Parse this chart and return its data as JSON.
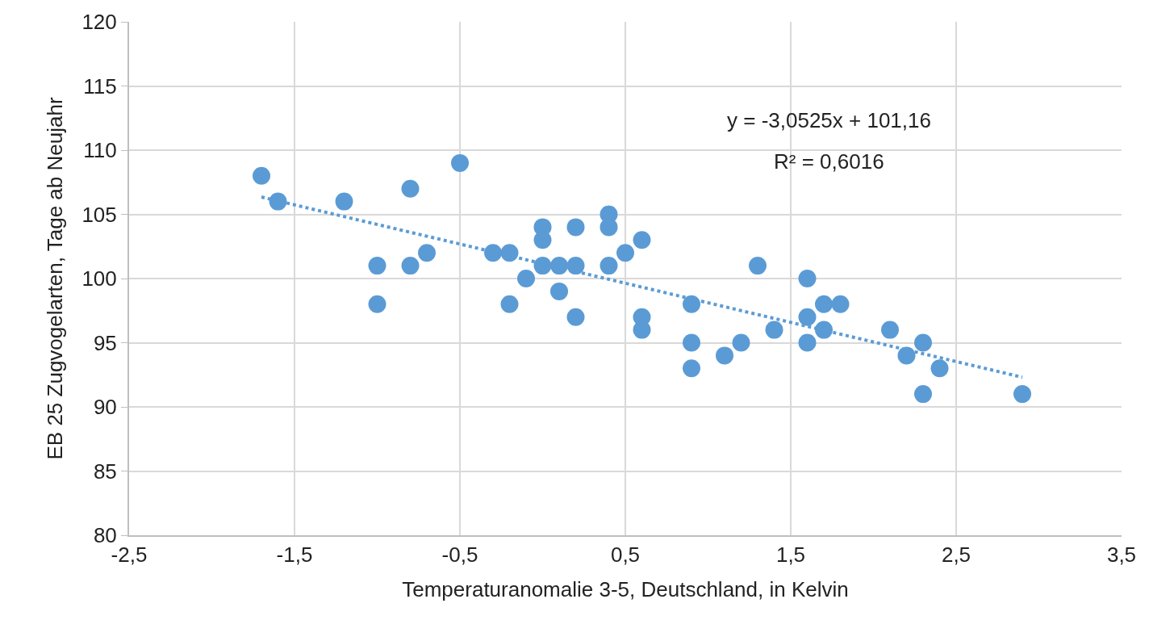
{
  "chart_data": {
    "type": "scatter",
    "xlabel": "Temperaturanomalie 3-5, Deutschland, in Kelvin",
    "ylabel": "EB 25 Zugvogelarten, Tage ab Neujahr",
    "annotations": [
      "y = -3,0525x + 101,16",
      "R² = 0,6016"
    ],
    "xlim": [
      -2.5,
      3.5
    ],
    "xticks": [
      {
        "value": -2.5,
        "label": "-2,5"
      },
      {
        "value": -1.5,
        "label": "-1,5"
      },
      {
        "value": -0.5,
        "label": "-0,5"
      },
      {
        "value": 0.5,
        "label": "0,5"
      },
      {
        "value": 1.5,
        "label": "1,5"
      },
      {
        "value": 2.5,
        "label": "2,5"
      },
      {
        "value": 3.5,
        "label": "3,5"
      }
    ],
    "ylim": [
      80,
      120
    ],
    "yticks": [
      80,
      85,
      90,
      95,
      100,
      105,
      110,
      115,
      120
    ],
    "grid": true,
    "series": [
      {
        "marker": "circle",
        "color": "#5b9bd5",
        "x": [
          -1.7,
          -1.6,
          -1.2,
          -1.0,
          -1.0,
          -0.8,
          -0.8,
          -0.7,
          -0.5,
          -0.3,
          -0.2,
          -0.2,
          -0.1,
          0.0,
          0.0,
          0.0,
          0.1,
          0.1,
          0.2,
          0.2,
          0.2,
          0.4,
          0.4,
          0.4,
          0.5,
          0.6,
          0.6,
          0.6,
          0.9,
          0.9,
          0.9,
          1.1,
          1.2,
          1.3,
          1.4,
          1.6,
          1.6,
          1.6,
          1.7,
          1.7,
          1.8,
          2.1,
          2.2,
          2.3,
          2.3,
          2.4,
          2.9
        ],
        "values": [
          108,
          106,
          106,
          101,
          98,
          107,
          101,
          102,
          109,
          102,
          102,
          98,
          100,
          104,
          103,
          101,
          101,
          99,
          104,
          101,
          97,
          105,
          104,
          101,
          102,
          103,
          97,
          96,
          98,
          95,
          93,
          94,
          95,
          101,
          96,
          100,
          97,
          95,
          98,
          96,
          98,
          96,
          94,
          95,
          91,
          93,
          91
        ]
      },
      {
        "type": "line",
        "marker": "none",
        "color": "#5b9bd5",
        "line_style": "dotted",
        "x": [
          -1.7,
          2.9
        ],
        "values": [
          106.35,
          92.31
        ]
      }
    ]
  }
}
